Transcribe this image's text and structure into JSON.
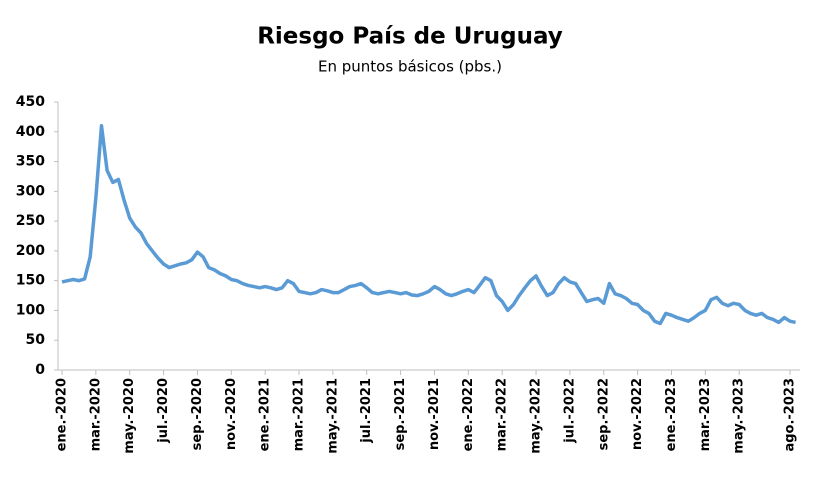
{
  "chart_data": {
    "type": "line",
    "title": "Riesgo País de Uruguay",
    "subtitle": "En puntos básicos (pbs.)",
    "categories": [
      "ene.-2020",
      null,
      null,
      null,
      null,
      null,
      "mar.-2020",
      null,
      null,
      null,
      null,
      null,
      "may.-2020",
      null,
      null,
      null,
      null,
      null,
      "jul.-2020",
      null,
      null,
      null,
      null,
      null,
      "sep.-2020",
      null,
      null,
      null,
      null,
      null,
      "nov.-2020",
      null,
      null,
      null,
      null,
      null,
      "ene.-2021",
      null,
      null,
      null,
      null,
      null,
      "mar.-2021",
      null,
      null,
      null,
      null,
      null,
      "may.-2021",
      null,
      null,
      null,
      null,
      null,
      "jul.-2021",
      null,
      null,
      null,
      null,
      null,
      "sep.-2021",
      null,
      null,
      null,
      null,
      null,
      "nov.-2021",
      null,
      null,
      null,
      null,
      null,
      "ene.-2022",
      null,
      null,
      null,
      null,
      null,
      "mar.-2022",
      null,
      null,
      null,
      null,
      null,
      "may.-2022",
      null,
      null,
      null,
      null,
      null,
      "jul.-2022",
      null,
      null,
      null,
      null,
      null,
      "sep.-2022",
      null,
      null,
      null,
      null,
      null,
      "nov.-2022",
      null,
      null,
      null,
      null,
      null,
      "ene.-2023",
      null,
      null,
      null,
      null,
      null,
      "mar.-2023",
      null,
      null,
      null,
      null,
      null,
      "may.-2023",
      null,
      null,
      null,
      null,
      null,
      null,
      null,
      null,
      "ago.-2023",
      null
    ],
    "series": [
      {
        "color": "#5b9bd5",
        "values": [
          148,
          150,
          152,
          150,
          153,
          190,
          290,
          410,
          335,
          315,
          320,
          285,
          255,
          240,
          230,
          212,
          200,
          188,
          178,
          172,
          175,
          178,
          180,
          185,
          198,
          190,
          172,
          168,
          162,
          158,
          152,
          150,
          145,
          142,
          140,
          138,
          140,
          138,
          135,
          138,
          150,
          145,
          132,
          130,
          128,
          130,
          135,
          133,
          130,
          130,
          135,
          140,
          142,
          145,
          138,
          130,
          128,
          130,
          132,
          130,
          128,
          130,
          126,
          125,
          128,
          132,
          140,
          135,
          128,
          125,
          128,
          132,
          135,
          130,
          142,
          155,
          150,
          125,
          115,
          100,
          110,
          125,
          138,
          150,
          158,
          140,
          125,
          130,
          145,
          155,
          148,
          145,
          130,
          115,
          118,
          120,
          112,
          145,
          128,
          125,
          120,
          112,
          110,
          100,
          95,
          82,
          78,
          95,
          92,
          88,
          85,
          82,
          88,
          95,
          100,
          118,
          122,
          112,
          108,
          112,
          110,
          100,
          95,
          92,
          95,
          88,
          85,
          80,
          88,
          82,
          80
        ]
      }
    ],
    "ylim": [
      0,
      450
    ],
    "yticks": [
      0,
      50,
      100,
      150,
      200,
      250,
      300,
      350,
      400,
      450
    ],
    "grid": false
  }
}
